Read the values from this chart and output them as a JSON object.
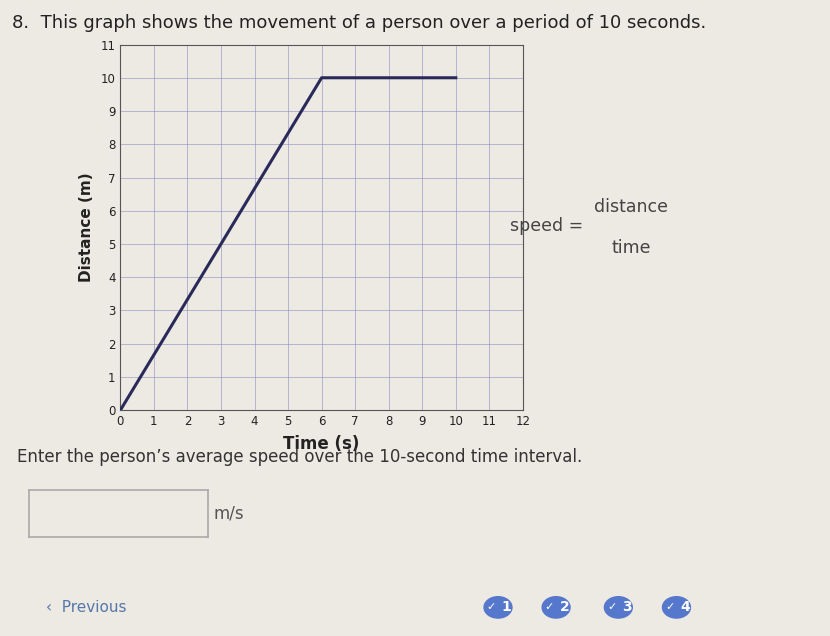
{
  "title": "8.  This graph shows the movement of a person over a period of 10 seconds.",
  "title_fontsize": 13,
  "xlabel": "Time (s)",
  "ylabel": "Distance (m)",
  "xlabel_fontsize": 12,
  "ylabel_fontsize": 11,
  "xlim": [
    0,
    12
  ],
  "ylim": [
    0,
    11
  ],
  "xticks": [
    0,
    1,
    2,
    3,
    4,
    5,
    6,
    7,
    8,
    9,
    10,
    11,
    12
  ],
  "yticks": [
    0,
    1,
    2,
    3,
    4,
    5,
    6,
    7,
    8,
    9,
    10,
    11
  ],
  "line_x": [
    0,
    6,
    10
  ],
  "line_y": [
    0,
    10,
    10
  ],
  "line_color": "#2a2a5a",
  "line_width": 2.2,
  "grid_color": "#8888bb",
  "grid_alpha": 0.55,
  "grid_linewidth": 0.7,
  "bg_color": "#ede9e3",
  "axes_bg_color": "#ede9e3",
  "speed_label": "speed = ",
  "speed_numerator": "distance",
  "speed_denominator": "time",
  "question_text": "Enter the person’s average speed over the 10-second time interval.",
  "unit_text": "m/s",
  "nav_text_prev": "‹  Previous",
  "nav_numbers": [
    "1",
    "2",
    "3",
    "4"
  ],
  "tick_fontsize": 8.5,
  "formula_color": "#444444"
}
